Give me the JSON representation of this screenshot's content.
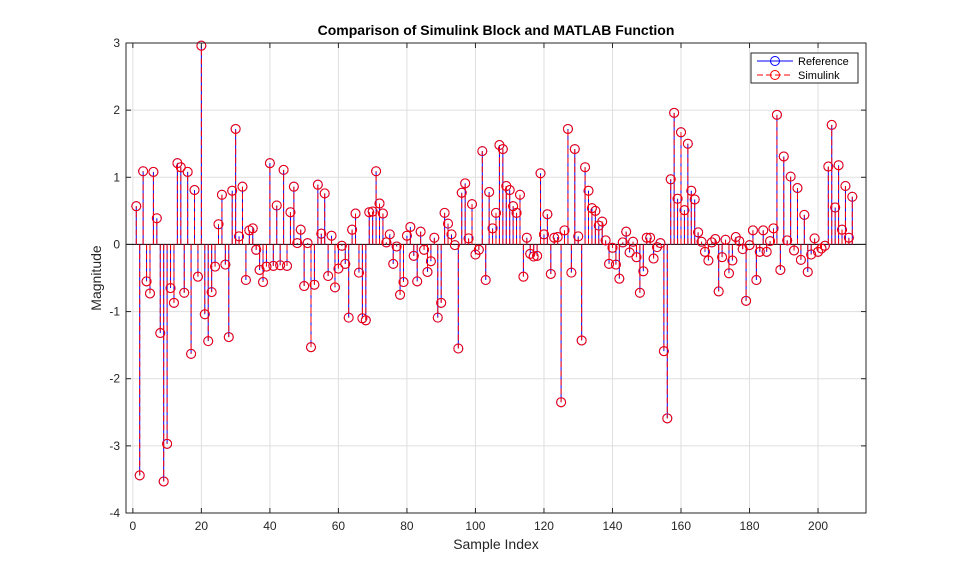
{
  "chart_data": {
    "type": "stem",
    "title": "Comparison of Simulink Block and MATLAB Function",
    "xlabel": "Sample Index",
    "ylabel": "Magnitude",
    "xlim": [
      -2,
      214
    ],
    "ylim": [
      -4,
      3
    ],
    "xticks": [
      0,
      20,
      40,
      60,
      80,
      100,
      120,
      140,
      160,
      180,
      200
    ],
    "yticks": [
      -4,
      -3,
      -2,
      -1,
      0,
      1,
      2,
      3
    ],
    "grid": true,
    "legend_position": "top-right",
    "series": [
      {
        "name": "Reference",
        "color": "#0000ff",
        "line_style": "solid",
        "marker": "circle",
        "values": [
          0.57,
          -3.44,
          1.09,
          -0.55,
          -0.73,
          1.08,
          0.39,
          -1.32,
          -3.53,
          -2.97,
          -0.65,
          -0.87,
          1.21,
          1.15,
          -0.72,
          1.08,
          -1.63,
          0.81,
          -0.48,
          2.96,
          -1.04,
          -1.44,
          -0.71,
          -0.33,
          0.3,
          0.74,
          -0.3,
          -1.38,
          0.8,
          1.72,
          0.12,
          0.86,
          -0.53,
          0.21,
          0.24,
          -0.08,
          -0.38,
          -0.56,
          -0.33,
          1.21,
          -0.32,
          0.58,
          -0.31,
          1.11,
          -0.32,
          0.48,
          0.86,
          0.02,
          0.22,
          -0.62,
          0.02,
          -1.53,
          -0.6,
          0.89,
          0.16,
          0.76,
          -0.47,
          0.13,
          -0.64,
          -0.36,
          -0.02,
          -0.29,
          -1.09,
          0.22,
          0.46,
          -0.42,
          -1.1,
          -1.13,
          0.48,
          0.49,
          1.09,
          0.61,
          0.46,
          0.03,
          0.15,
          -0.29,
          -0.03,
          -0.75,
          -0.56,
          0.13,
          0.26,
          -0.17,
          -0.55,
          0.19,
          -0.08,
          -0.41,
          -0.25,
          0.1,
          -1.09,
          -0.87,
          0.47,
          0.31,
          0.15,
          -0.01,
          -1.55,
          0.77,
          0.91,
          0.09,
          0.6,
          -0.15,
          -0.08,
          1.39,
          -0.53,
          0.78,
          0.24,
          0.47,
          1.48,
          1.42,
          0.87,
          0.81,
          0.57,
          0.47,
          0.74,
          -0.48,
          0.1,
          -0.14,
          -0.18,
          -0.17,
          1.06,
          0.15,
          0.45,
          -0.44,
          0.1,
          0.11,
          -2.35,
          0.21,
          1.72,
          -0.42,
          1.42,
          0.12,
          -1.43,
          1.15,
          0.8,
          0.54,
          0.5,
          0.28,
          0.34,
          0.06,
          -0.29,
          -0.05,
          -0.3,
          -0.51,
          0.03,
          0.19,
          -0.12,
          0.04,
          -0.19,
          -0.72,
          -0.4,
          0.1,
          0.1,
          -0.21,
          -0.04,
          0.02,
          -1.59,
          -2.59,
          0.97,
          1.96,
          0.68,
          1.67,
          0.51,
          1.5,
          0.8,
          0.67,
          0.18,
          0.04,
          -0.11,
          -0.24,
          0.03,
          0.08,
          -0.7,
          -0.19,
          0.07,
          -0.43,
          -0.24,
          0.11,
          0.05,
          -0.07,
          -0.84,
          -0.01,
          0.21,
          -0.53,
          -0.11,
          0.21,
          -0.11,
          0.05,
          0.24,
          1.93,
          -0.38,
          1.31,
          0.06,
          1.01,
          -0.09,
          0.84,
          -0.23,
          0.44,
          -0.41,
          -0.15,
          0.09,
          -0.11,
          -0.06,
          -0.02,
          1.16,
          1.78,
          0.55,
          1.18,
          0.22,
          0.87,
          0.1,
          0.71
        ]
      },
      {
        "name": "Simulink",
        "color": "#ff0000",
        "line_style": "dashed",
        "marker": "circle",
        "values": [
          0.57,
          -3.44,
          1.09,
          -0.55,
          -0.73,
          1.08,
          0.39,
          -1.32,
          -3.53,
          -2.97,
          -0.65,
          -0.87,
          1.21,
          1.15,
          -0.72,
          1.08,
          -1.63,
          0.81,
          -0.48,
          2.96,
          -1.04,
          -1.44,
          -0.71,
          -0.33,
          0.3,
          0.74,
          -0.3,
          -1.38,
          0.8,
          1.72,
          0.12,
          0.86,
          -0.53,
          0.21,
          0.24,
          -0.08,
          -0.38,
          -0.56,
          -0.33,
          1.21,
          -0.32,
          0.58,
          -0.31,
          1.11,
          -0.32,
          0.48,
          0.86,
          0.02,
          0.22,
          -0.62,
          0.02,
          -1.53,
          -0.6,
          0.89,
          0.16,
          0.76,
          -0.47,
          0.13,
          -0.64,
          -0.36,
          -0.02,
          -0.29,
          -1.09,
          0.22,
          0.46,
          -0.42,
          -1.1,
          -1.13,
          0.48,
          0.49,
          1.09,
          0.61,
          0.46,
          0.03,
          0.15,
          -0.29,
          -0.03,
          -0.75,
          -0.56,
          0.13,
          0.26,
          -0.17,
          -0.55,
          0.19,
          -0.08,
          -0.41,
          -0.25,
          0.1,
          -1.09,
          -0.87,
          0.47,
          0.31,
          0.15,
          -0.01,
          -1.55,
          0.77,
          0.91,
          0.09,
          0.6,
          -0.15,
          -0.08,
          1.39,
          -0.53,
          0.78,
          0.24,
          0.47,
          1.48,
          1.42,
          0.87,
          0.81,
          0.57,
          0.47,
          0.74,
          -0.48,
          0.1,
          -0.14,
          -0.18,
          -0.17,
          1.06,
          0.15,
          0.45,
          -0.44,
          0.1,
          0.11,
          -2.35,
          0.21,
          1.72,
          -0.42,
          1.42,
          0.12,
          -1.43,
          1.15,
          0.8,
          0.54,
          0.5,
          0.28,
          0.34,
          0.06,
          -0.29,
          -0.05,
          -0.3,
          -0.51,
          0.03,
          0.19,
          -0.12,
          0.04,
          -0.19,
          -0.72,
          -0.4,
          0.1,
          0.1,
          -0.21,
          -0.04,
          0.02,
          -1.59,
          -2.59,
          0.97,
          1.96,
          0.68,
          1.67,
          0.51,
          1.5,
          0.8,
          0.67,
          0.18,
          0.04,
          -0.11,
          -0.24,
          0.03,
          0.08,
          -0.7,
          -0.19,
          0.07,
          -0.43,
          -0.24,
          0.11,
          0.05,
          -0.07,
          -0.84,
          -0.01,
          0.21,
          -0.53,
          -0.11,
          0.21,
          -0.11,
          0.05,
          0.24,
          1.93,
          -0.38,
          1.31,
          0.06,
          1.01,
          -0.09,
          0.84,
          -0.23,
          0.44,
          -0.41,
          -0.15,
          0.09,
          -0.11,
          -0.06,
          -0.02,
          1.16,
          1.78,
          0.55,
          1.18,
          0.22,
          0.87,
          0.1,
          0.71
        ]
      }
    ]
  }
}
